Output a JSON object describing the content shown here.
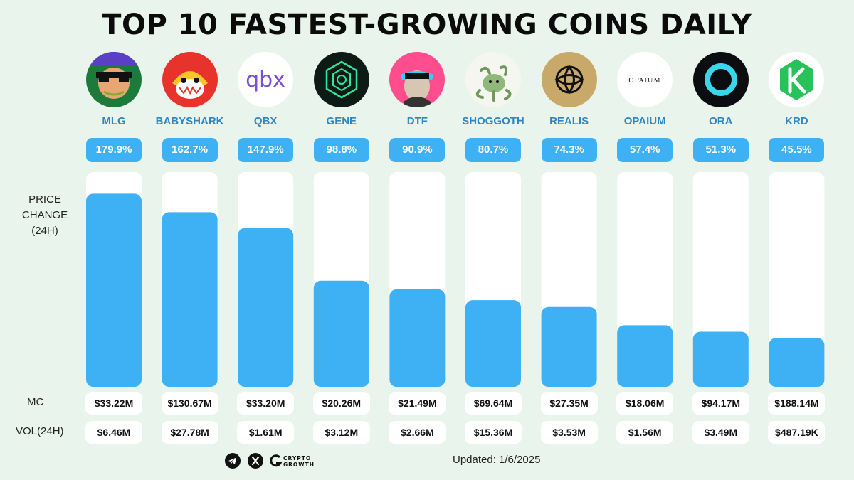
{
  "chart_data": {
    "type": "bar",
    "title": "TOP 10 FASTEST-GROWING COINS DAILY",
    "ylabel": [
      "PRICE",
      "CHANGE",
      "(24H)"
    ],
    "unit": "%",
    "ylim": [
      0,
      200
    ],
    "categories": [
      "MLG",
      "BABYSHARK",
      "QBX",
      "GENE",
      "DTF",
      "SHOGGOTH",
      "REALIS",
      "OPAIUM",
      "ORA",
      "KRD"
    ],
    "values": [
      179.9,
      162.7,
      147.9,
      98.8,
      90.9,
      80.7,
      74.3,
      57.4,
      51.3,
      45.5
    ],
    "value_labels": [
      "179.9%",
      "162.7%",
      "147.9%",
      "98.8%",
      "90.9%",
      "80.7%",
      "74.3%",
      "57.4%",
      "51.3%",
      "45.5%"
    ],
    "bar_color": "#3db1f4",
    "track_color": "#ffffff",
    "rows": {
      "mc_label": "MC",
      "vol_label": "VOL(24H)",
      "mc": [
        "$33.22M",
        "$130.67M",
        "$33.20M",
        "$20.26M",
        "$21.49M",
        "$69.64M",
        "$27.35M",
        "$18.06M",
        "$94.17M",
        "$188.14M"
      ],
      "vol": [
        "$6.46M",
        "$27.78M",
        "$1.61M",
        "$3.12M",
        "$2.66M",
        "$15.36M",
        "$3.53M",
        "$1.56M",
        "$3.49M",
        "$487.19K"
      ]
    }
  },
  "logos": [
    "mlg-logo",
    "babyshark-logo",
    "qbx-logo",
    "gene-logo",
    "dtf-logo",
    "shoggoth-logo",
    "realis-logo",
    "opaium-logo",
    "ora-logo",
    "krd-logo"
  ],
  "logo_text": {
    "qbx": "qbx",
    "opaium": "OPAIUM"
  },
  "footer": {
    "brand_line1": "CRYPTO",
    "brand_line2": "GROWTH",
    "updated": "Updated: 1/6/2025",
    "icons": [
      "telegram-icon",
      "x-icon",
      "crypto-growth-logo-icon"
    ]
  }
}
